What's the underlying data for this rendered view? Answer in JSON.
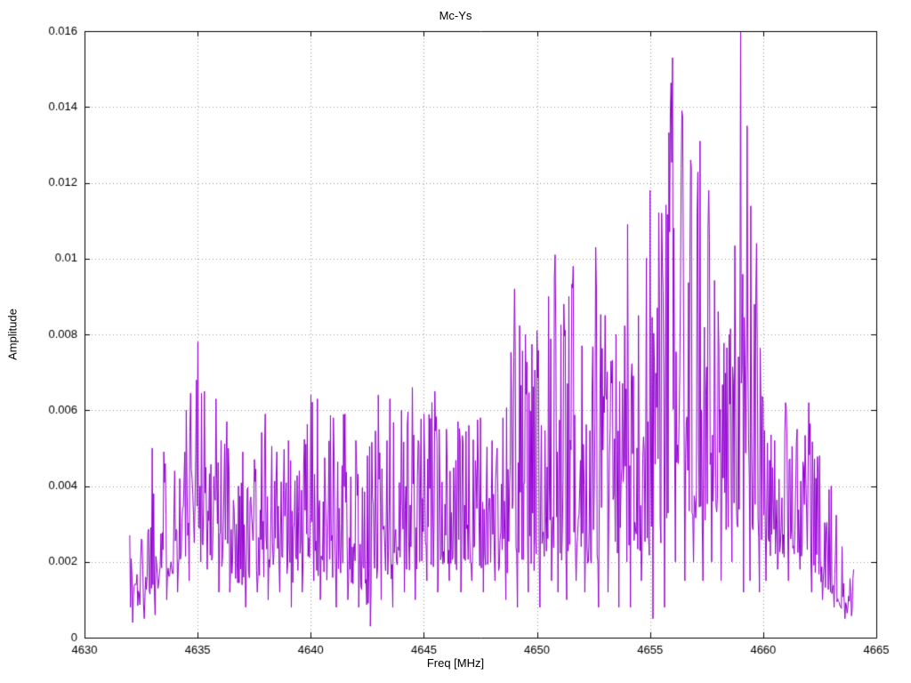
{
  "chart_data": {
    "type": "line",
    "title": "Mc-Ys",
    "xlabel": "Freq [MHz]",
    "ylabel": "Amplitude",
    "xlim": [
      4630,
      4665
    ],
    "ylim": [
      0,
      0.016
    ],
    "grid": true,
    "legend": "none",
    "background": "#ffffff",
    "border_color": "#000000",
    "grid_color": "#9a9a9a",
    "line_color": "#9400d3",
    "x_ticks": {
      "values": [
        4630,
        4635,
        4640,
        4645,
        4650,
        4655,
        4660,
        4665
      ],
      "labels": [
        "4630",
        "4635",
        "4640",
        "4645",
        "4650",
        "4655",
        "4660",
        "4665"
      ]
    },
    "y_ticks": {
      "values": [
        0,
        0.002,
        0.004,
        0.006,
        0.008,
        0.01,
        0.012,
        0.014,
        0.016
      ],
      "labels": [
        "0",
        "0.002",
        "0.004",
        "0.006",
        "0.008",
        "0.01",
        "0.012",
        "0.014",
        "0.016"
      ]
    },
    "series": [
      {
        "name": "Mc-Ys",
        "x_start": 4632.0,
        "x_end": 4664.0,
        "samples": 1000,
        "seed": 1337,
        "envelope_note": "control points [x, typical_min, local_max] estimated from plot",
        "envelope": [
          [
            4632.0,
            0.0004,
            0.0027
          ],
          [
            4632.5,
            0.0005,
            0.0026
          ],
          [
            4633.0,
            0.0006,
            0.005
          ],
          [
            4633.5,
            0.001,
            0.0049
          ],
          [
            4634.0,
            0.0012,
            0.0044
          ],
          [
            4634.5,
            0.0015,
            0.006
          ],
          [
            4635.0,
            0.002,
            0.0078
          ],
          [
            4635.3,
            0.0018,
            0.0065
          ],
          [
            4635.8,
            0.0012,
            0.0063
          ],
          [
            4636.3,
            0.0012,
            0.0057
          ],
          [
            4637.0,
            0.0008,
            0.0049
          ],
          [
            4637.5,
            0.0012,
            0.0047
          ],
          [
            4638.0,
            0.001,
            0.0059
          ],
          [
            4638.5,
            0.0012,
            0.0049
          ],
          [
            4639.0,
            0.0008,
            0.0052
          ],
          [
            4639.5,
            0.0012,
            0.0044
          ],
          [
            4640.0,
            0.0015,
            0.0064
          ],
          [
            4640.3,
            0.001,
            0.0063
          ],
          [
            4641.0,
            0.0008,
            0.0058
          ],
          [
            4641.5,
            0.001,
            0.0059
          ],
          [
            4642.0,
            0.0008,
            0.0052
          ],
          [
            4642.5,
            0.0003,
            0.0048
          ],
          [
            4643.0,
            0.001,
            0.0064
          ],
          [
            4643.5,
            0.0008,
            0.0063
          ],
          [
            4644.0,
            0.0012,
            0.006
          ],
          [
            4644.5,
            0.001,
            0.0066
          ],
          [
            4645.0,
            0.0015,
            0.0059
          ],
          [
            4645.5,
            0.0012,
            0.0065
          ],
          [
            4646.0,
            0.0015,
            0.0055
          ],
          [
            4646.5,
            0.0012,
            0.0057
          ],
          [
            4647.0,
            0.0015,
            0.0056
          ],
          [
            4647.5,
            0.0012,
            0.0058
          ],
          [
            4648.0,
            0.0015,
            0.0052
          ],
          [
            4648.5,
            0.001,
            0.0058
          ],
          [
            4649.0,
            0.0008,
            0.0092
          ],
          [
            4649.5,
            0.0012,
            0.008
          ],
          [
            4650.0,
            0.0008,
            0.0081
          ],
          [
            4650.5,
            0.0015,
            0.009
          ],
          [
            4650.8,
            0.0012,
            0.0101
          ],
          [
            4651.2,
            0.001,
            0.0088
          ],
          [
            4651.6,
            0.0015,
            0.0098
          ],
          [
            4652.0,
            0.0012,
            0.0077
          ],
          [
            4652.6,
            0.0008,
            0.0103
          ],
          [
            4653.0,
            0.0012,
            0.0085
          ],
          [
            4653.5,
            0.0008,
            0.008
          ],
          [
            4654.0,
            0.0008,
            0.0109
          ],
          [
            4654.5,
            0.0015,
            0.0085
          ],
          [
            4655.0,
            0.0005,
            0.0118
          ],
          [
            4655.5,
            0.0008,
            0.0112
          ],
          [
            4656.0,
            0.002,
            0.0153
          ],
          [
            4656.4,
            0.0015,
            0.0139
          ],
          [
            4656.8,
            0.002,
            0.0126
          ],
          [
            4657.2,
            0.0015,
            0.0131
          ],
          [
            4657.6,
            0.002,
            0.0118
          ],
          [
            4658.0,
            0.0015,
            0.0086
          ],
          [
            4658.5,
            0.002,
            0.008
          ],
          [
            4659.0,
            0.0012,
            0.016
          ],
          [
            4659.3,
            0.0015,
            0.0135
          ],
          [
            4659.7,
            0.0012,
            0.0104
          ],
          [
            4660.0,
            0.0015,
            0.0062
          ],
          [
            4660.5,
            0.0018,
            0.0052
          ],
          [
            4661.0,
            0.0015,
            0.0062
          ],
          [
            4661.5,
            0.0018,
            0.0055
          ],
          [
            4662.0,
            0.0012,
            0.0062
          ],
          [
            4662.5,
            0.001,
            0.0048
          ],
          [
            4663.0,
            0.0008,
            0.004
          ],
          [
            4663.5,
            0.0005,
            0.0024
          ],
          [
            4664.0,
            0.0003,
            0.0018
          ]
        ]
      }
    ]
  }
}
